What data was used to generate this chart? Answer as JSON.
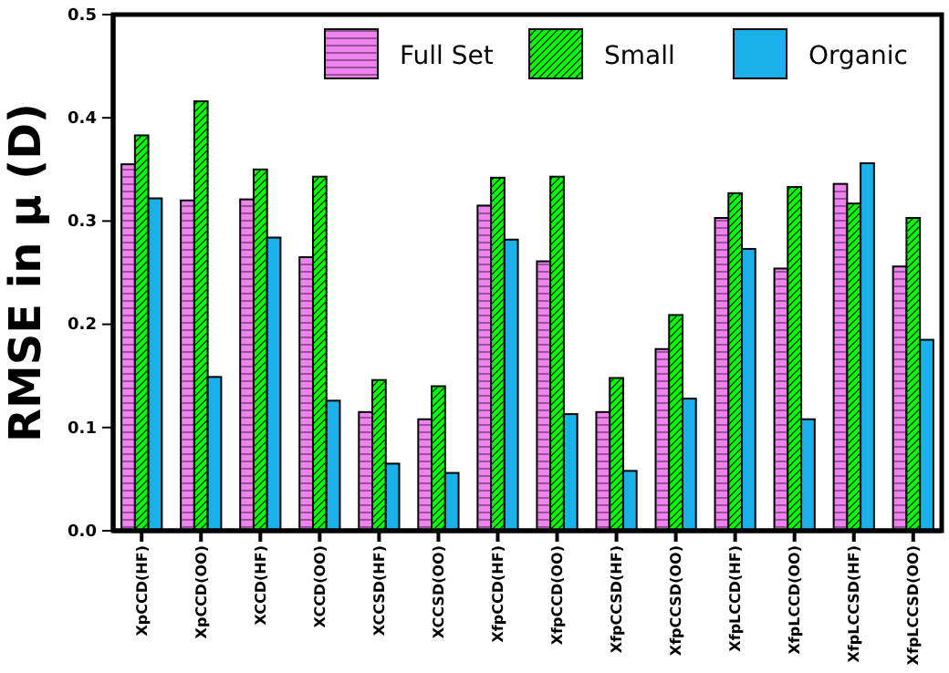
{
  "chart_data": {
    "type": "bar",
    "ylabel": "RMSE in μ (D)",
    "categories": [
      "XpCCD(HF)",
      "XpCCD(OO)",
      "XCCD(HF)",
      "XCCD(OO)",
      "XCCSD(HF)",
      "XCCSD(OO)",
      "XfpCCD(HF)",
      "XfpCCD(OO)",
      "XfpCCSD(HF)",
      "XfpCCSD(OO)",
      "XfpLCCD(HF)",
      "XfpLCCD(OO)",
      "XfpLCCSD(HF)",
      "XfpLCCSD(OO)"
    ],
    "series": [
      {
        "name": "Full Set",
        "color": "#ee82ee",
        "values": [
          0.355,
          0.32,
          0.321,
          0.265,
          0.115,
          0.108,
          0.315,
          0.261,
          0.115,
          0.176,
          0.303,
          0.254,
          0.336,
          0.256
        ]
      },
      {
        "name": "Small",
        "color": "#00ff00",
        "values": [
          0.383,
          0.416,
          0.35,
          0.343,
          0.146,
          0.14,
          0.342,
          0.343,
          0.148,
          0.209,
          0.327,
          0.333,
          0.317,
          0.303
        ]
      },
      {
        "name": "Organic",
        "color": "#1ab0e8",
        "values": [
          0.322,
          0.149,
          0.284,
          0.126,
          0.065,
          0.056,
          0.282,
          0.113,
          0.058,
          0.128,
          0.273,
          0.108,
          0.356,
          0.185
        ]
      }
    ],
    "ylim": [
      0,
      0.5
    ],
    "yticks": [
      {
        "value": 0,
        "label": "0.0"
      },
      0.1,
      0.2,
      0.3,
      0.4,
      0.5
    ],
    "legend": "top right",
    "grid": false
  }
}
